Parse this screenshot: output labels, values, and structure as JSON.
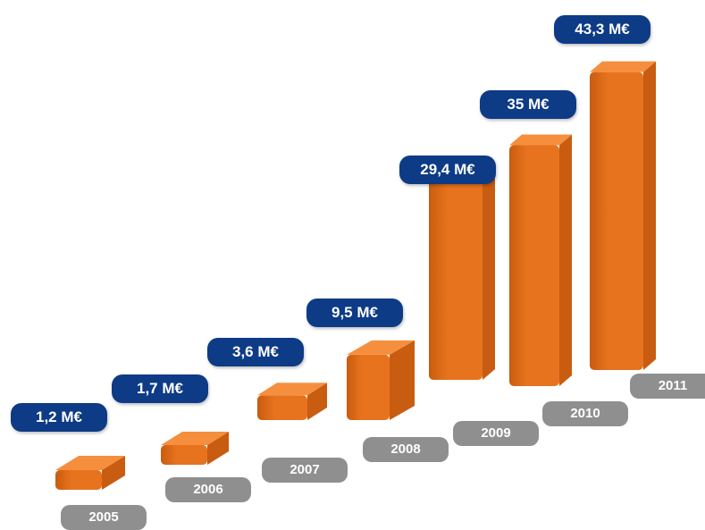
{
  "chart_data": {
    "type": "bar",
    "title": "",
    "xlabel": "",
    "ylabel": "",
    "categories": [
      "2005",
      "2006",
      "2007",
      "2008",
      "2009",
      "2010",
      "2011"
    ],
    "values": [
      1.2,
      1.7,
      3.6,
      9.5,
      29.4,
      35,
      43.3
    ],
    "value_labels": [
      "1,2 M€",
      "1,7 M€",
      "3,6 M€",
      "9,5 M€",
      "29,4 M€",
      "35 M€",
      "43,3 M€"
    ],
    "unit": "M€",
    "grid": false,
    "legend": "none",
    "colors": {
      "bar_front": "#e8731e",
      "bar_top": "#f58f3e",
      "bar_side": "#c85c10",
      "value_pill": "#0d3b86",
      "year_pill": "#8f8f8f"
    }
  }
}
